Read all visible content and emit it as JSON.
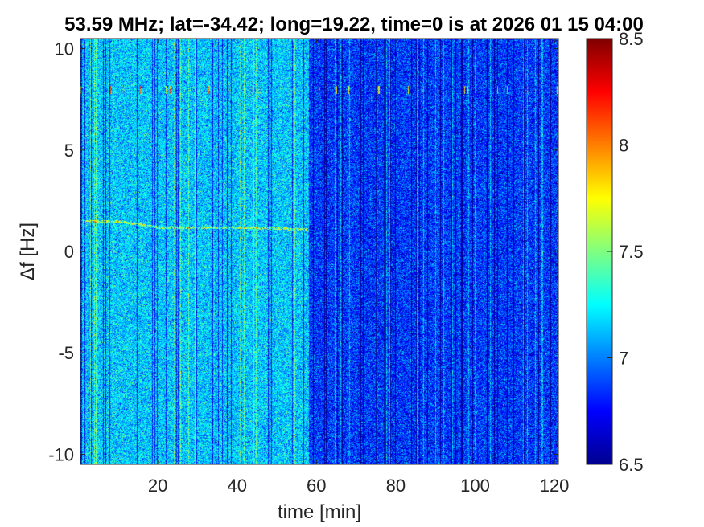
{
  "chart_data": {
    "type": "heatmap",
    "title": "53.59 MHz;  lat=-34.42; long=19.22, time=0 is at 2026 01 15 04:00",
    "xlabel": "time [min]",
    "ylabel": "Δf [Hz]",
    "xlim": [
      0.5,
      121
    ],
    "ylim": [
      -10.5,
      10.5
    ],
    "xticks": [
      20,
      40,
      60,
      80,
      100,
      120
    ],
    "xtick_labels": [
      "20",
      "40",
      "60",
      "80",
      "100",
      "120"
    ],
    "yticks": [
      -10,
      -5,
      0,
      5,
      10
    ],
    "ytick_labels": [
      "-10",
      "-5",
      "0",
      "5",
      "10"
    ],
    "colorbar": {
      "colormap": "jet",
      "clim": [
        6.5,
        8.5
      ],
      "ticks": [
        6.5,
        7,
        7.5,
        8,
        8.5
      ],
      "tick_labels": [
        "6.5",
        "7",
        "7.5",
        "8",
        "8.5"
      ]
    },
    "features": {
      "regime_change_time_min": 58,
      "level_before_change": 7.15,
      "level_after_change": 6.85,
      "spur_frequency_hz": 8.0,
      "carrier_trace": [
        [
          1,
          1.5
        ],
        [
          10,
          1.5
        ],
        [
          20,
          1.2
        ],
        [
          30,
          1.2
        ],
        [
          40,
          1.2
        ],
        [
          58,
          1.1
        ]
      ]
    },
    "grid": false
  }
}
